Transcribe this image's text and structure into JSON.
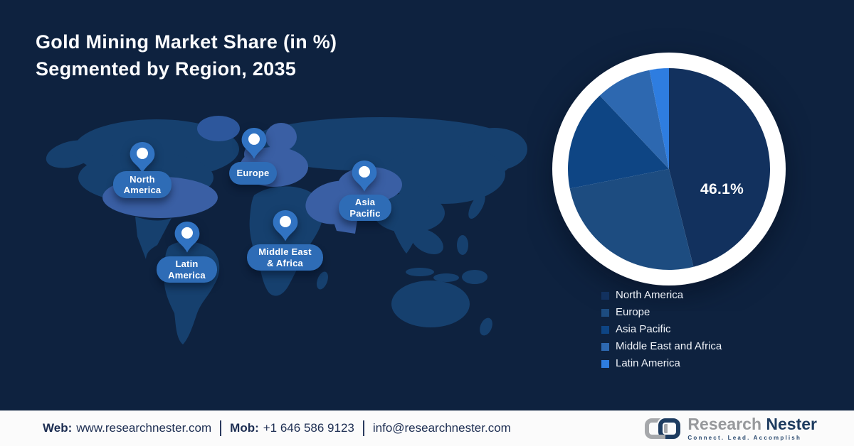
{
  "page": {
    "background": "#0e223f",
    "footer_background": "#fbfbfb"
  },
  "title": {
    "line1": "Gold Mining Market Share (in %)",
    "line2": "Segmented by Region, 2035"
  },
  "map": {
    "colors": {
      "land": "#16406e",
      "highlight": "#3a5fa4",
      "greenland": "#2d579c",
      "pin": "#3173c2",
      "badge": "#2e6cb6"
    },
    "pins": [
      {
        "id": "north-america",
        "label": "North\nAmerica"
      },
      {
        "id": "europe",
        "label": "Europe"
      },
      {
        "id": "asia-pacific",
        "label": "Asia\nPacific"
      },
      {
        "id": "middle-east-africa",
        "label": "Middle East\n& Africa"
      },
      {
        "id": "latin-america",
        "label": "Latin\nAmerica"
      }
    ]
  },
  "chart_data": {
    "type": "pie",
    "title": "Gold Mining Market Share (in %) Segmented by Region, 2035",
    "unit": "%",
    "start_angle_deg": 0,
    "direction": "clockwise",
    "legend_position": "bottom-right",
    "segments": [
      {
        "id": "north-america",
        "label": "North America",
        "value": 46.1,
        "color": "#12315e",
        "data_label": "46.1%"
      },
      {
        "id": "europe",
        "label": "Europe",
        "value": 25.8,
        "color": "#1d4c80"
      },
      {
        "id": "asia-pacific",
        "label": "Asia Pacific",
        "value": 16.1,
        "color": "#0e4584"
      },
      {
        "id": "middle-east-africa",
        "label": "Middle East and Africa",
        "value": 8.9,
        "color": "#2d68b0"
      },
      {
        "id": "latin-america",
        "label": "Latin America",
        "value": 3.1,
        "color": "#2e7de0"
      }
    ]
  },
  "footer": {
    "web_label": "Web:",
    "web_value": "www.researchnester.com",
    "mob_label": "Mob:",
    "mob_value": "+1 646 586 9123",
    "email": "info@researchnester.com"
  },
  "logo": {
    "name_part1": "Research",
    "name_part2": "Nester",
    "tagline": "Connect. Lead. Accomplish"
  }
}
